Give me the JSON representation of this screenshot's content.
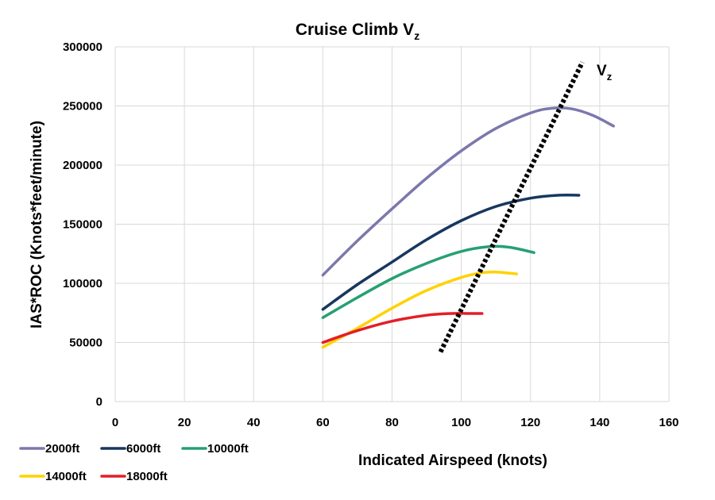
{
  "chart_data": {
    "type": "line",
    "title": "Cruise Climb V",
    "title_subscript": "z",
    "xlabel": "Indicated Airspeed (knots)",
    "ylabel": "IAS*ROC (Knots*feet/minute)",
    "xlim": [
      0,
      160
    ],
    "ylim": [
      0,
      300000
    ],
    "xticks": [
      0,
      20,
      40,
      60,
      80,
      100,
      120,
      140,
      160
    ],
    "yticks": [
      0,
      50000,
      100000,
      150000,
      200000,
      250000,
      300000
    ],
    "grid": true,
    "legend_position": "bottom-left",
    "series": [
      {
        "name": "2000ft",
        "color": "#7b78ad",
        "x": [
          60,
          70,
          80,
          90,
          100,
          110,
          120,
          126,
          132,
          138,
          144
        ],
        "y": [
          107000,
          136000,
          163000,
          189000,
          212000,
          231000,
          244000,
          248000,
          247500,
          242000,
          233000
        ]
      },
      {
        "name": "6000ft",
        "color": "#17375e",
        "x": [
          60,
          70,
          80,
          90,
          100,
          110,
          120,
          128,
          134
        ],
        "y": [
          78000,
          99000,
          118000,
          137000,
          153000,
          165000,
          172000,
          174500,
          174500
        ]
      },
      {
        "name": "10000ft",
        "color": "#26a073",
        "x": [
          60,
          70,
          80,
          90,
          100,
          108,
          114,
          121
        ],
        "y": [
          71000,
          88000,
          104000,
          117000,
          127000,
          131000,
          130500,
          126000
        ]
      },
      {
        "name": "14000ft",
        "color": "#ffd200",
        "x": [
          60,
          70,
          80,
          90,
          100,
          106,
          110,
          116
        ],
        "y": [
          46000,
          62000,
          79000,
          94000,
          105000,
          109000,
          109500,
          108000
        ]
      },
      {
        "name": "18000ft",
        "color": "#e41e26",
        "x": [
          60,
          70,
          80,
          90,
          97,
          102,
          106
        ],
        "y": [
          50000,
          60000,
          68000,
          73000,
          74500,
          74500,
          74500
        ]
      }
    ],
    "vz_line": {
      "label": "V",
      "label_subscript": "z",
      "color": "#000000",
      "x": [
        94,
        135
      ],
      "y": [
        42000,
        287000
      ]
    }
  }
}
